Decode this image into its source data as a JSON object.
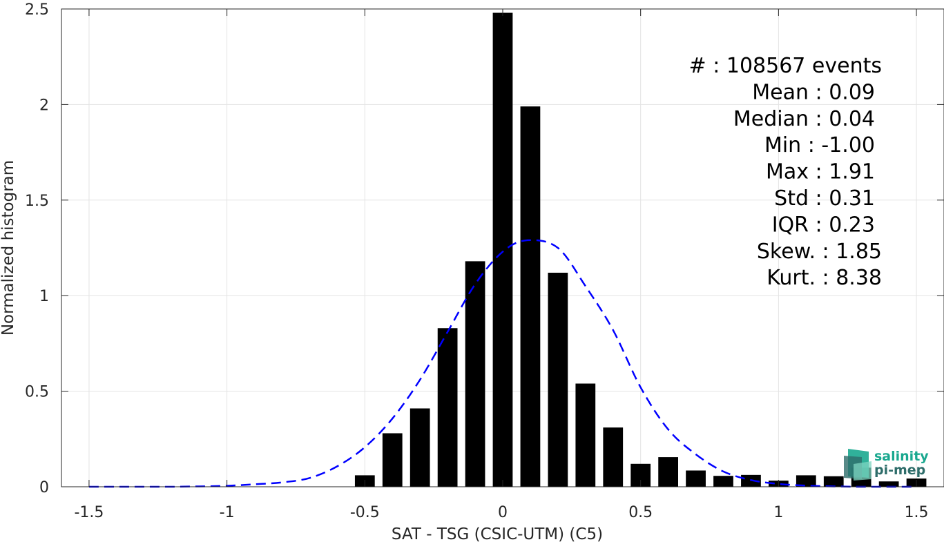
{
  "chart_data": {
    "type": "bar",
    "title": "",
    "xlabel": "SAT - TSG (CSIC-UTM) (C5)",
    "ylabel": "Normalized histogram",
    "xlim": [
      -1.6,
      1.6
    ],
    "ylim": [
      0,
      2.5
    ],
    "xticks": [
      -1.5,
      -1,
      -0.5,
      0,
      0.5,
      1,
      1.5
    ],
    "xtick_labels": [
      "-1.5",
      "-1",
      "-0.5",
      "0",
      "0.5",
      "1",
      "1.5"
    ],
    "yticks": [
      0,
      0.5,
      1,
      1.5,
      2,
      2.5
    ],
    "ytick_labels": [
      "0",
      "0.5",
      "1",
      "1.5",
      "2",
      "2.5"
    ],
    "grid": true,
    "bar_width": 0.072,
    "bar_color": "#000000",
    "bars": [
      {
        "x": -0.5,
        "y": 0.06
      },
      {
        "x": -0.4,
        "y": 0.28
      },
      {
        "x": -0.3,
        "y": 0.41
      },
      {
        "x": -0.2,
        "y": 0.83
      },
      {
        "x": -0.1,
        "y": 1.18
      },
      {
        "x": 0.0,
        "y": 2.48
      },
      {
        "x": 0.1,
        "y": 1.99
      },
      {
        "x": 0.2,
        "y": 1.12
      },
      {
        "x": 0.3,
        "y": 0.54
      },
      {
        "x": 0.4,
        "y": 0.31
      },
      {
        "x": 0.5,
        "y": 0.12
      },
      {
        "x": 0.6,
        "y": 0.155
      },
      {
        "x": 0.7,
        "y": 0.085
      },
      {
        "x": 0.8,
        "y": 0.057
      },
      {
        "x": 0.9,
        "y": 0.062
      },
      {
        "x": 1.0,
        "y": 0.032
      },
      {
        "x": 1.1,
        "y": 0.06
      },
      {
        "x": 1.2,
        "y": 0.055
      },
      {
        "x": 1.3,
        "y": 0.1
      },
      {
        "x": 1.4,
        "y": 0.028
      },
      {
        "x": 1.5,
        "y": 0.043
      }
    ],
    "fit_curve": {
      "color": "#0000ff",
      "style": "dashed",
      "mean": 0.09,
      "std": 0.31,
      "x": [
        -1.5,
        -1.4,
        -1.3,
        -1.2,
        -1.1,
        -1.0,
        -0.9,
        -0.8,
        -0.7,
        -0.6,
        -0.5,
        -0.4,
        -0.3,
        -0.2,
        -0.1,
        0.0,
        0.09,
        0.2,
        0.3,
        0.4,
        0.5,
        0.6,
        0.7,
        0.8,
        0.9,
        1.0,
        1.1,
        1.2,
        1.3,
        1.4,
        1.5
      ],
      "y": [
        0.0,
        0.0,
        0.0,
        0.0,
        0.002,
        0.005,
        0.013,
        0.023,
        0.046,
        0.107,
        0.207,
        0.357,
        0.56,
        0.81,
        1.06,
        1.23,
        1.29,
        1.25,
        1.05,
        0.82,
        0.52,
        0.3,
        0.17,
        0.08,
        0.035,
        0.015,
        0.006,
        0.002,
        0.0,
        0.0,
        0.0
      ]
    },
    "stats": [
      {
        "label": "#  : 108567 events"
      },
      {
        "label": "Mean : 0.09"
      },
      {
        "label": "Median : 0.04"
      },
      {
        "label": "Min : -1.00"
      },
      {
        "label": "Max : 1.91"
      },
      {
        "label": "Std : 0.31"
      },
      {
        "label": "IQR : 0.23"
      },
      {
        "label": "Skew. : 1.85"
      },
      {
        "label": "Kurt. : 8.38"
      }
    ]
  },
  "logo": {
    "line1": "salinity",
    "line2": "pi-mep",
    "color_primary": "#1aa88f",
    "color_secondary": "#2e6d6a"
  }
}
